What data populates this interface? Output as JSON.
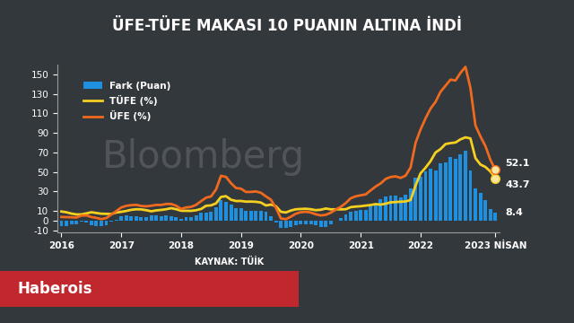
{
  "chart_data": {
    "type": "line",
    "title": "ÜFE-TÜFE MAKASI 10 PUANIN ALTINA İNDİ",
    "source": "KAYNAK: TÜİK",
    "watermark": "Bloomberg",
    "footer": "Haberois",
    "categories": [
      "2016",
      null,
      null,
      null,
      null,
      null,
      null,
      null,
      null,
      null,
      null,
      null,
      "2017",
      null,
      null,
      null,
      null,
      null,
      null,
      null,
      null,
      null,
      null,
      null,
      "2018",
      null,
      null,
      null,
      null,
      null,
      null,
      null,
      null,
      null,
      null,
      null,
      "2019",
      null,
      null,
      null,
      null,
      null,
      null,
      null,
      null,
      null,
      null,
      null,
      "2020",
      null,
      null,
      null,
      null,
      null,
      null,
      null,
      null,
      null,
      null,
      null,
      "2021",
      null,
      null,
      null,
      null,
      null,
      null,
      null,
      null,
      null,
      null,
      null,
      "2022",
      null,
      null,
      null,
      null,
      null,
      null,
      null,
      null,
      null,
      null,
      null,
      null,
      null,
      null,
      "2023 NİSAN"
    ],
    "series": [
      {
        "name": "Fark (Puan)",
        "type": "bar",
        "color": "#1f8fe0",
        "end_label": "8.4",
        "values": [
          -5.62,
          -4.96,
          -3.79,
          -3.22,
          -1.23,
          -2.09,
          -4.83,
          -5.02,
          -5.5,
          -4.32,
          -0.59,
          1.41,
          4.47,
          5.23,
          4.8,
          4.5,
          3.54,
          3.97,
          5.66,
          5.66,
          5.08,
          5.38,
          4.32,
          3.55,
          1.79,
          3.45,
          4.05,
          5.52,
          8.01,
          8.32,
          9.15,
          14.23,
          21.63,
          19.77,
          16.92,
          13.34,
          12.58,
          9.91,
          9.93,
          10.62,
          10.0,
          9.32,
          5.01,
          -1.56,
          -6.81,
          -6.85,
          -6.3,
          -4.48,
          -3.31,
          -3.11,
          -3.36,
          -4.23,
          -5.86,
          -6.45,
          -3.43,
          -0.24,
          2.58,
          6.31,
          9.08,
          10.55,
          11.19,
          11.48,
          15.01,
          18.03,
          21.74,
          25.36,
          25.97,
          26.27,
          24.38,
          26.42,
          33.31,
          43.81,
          44.84,
          50.57,
          53.83,
          51.85,
          58.66,
          59.69,
          65.01,
          63.54,
          68.05,
          72.18,
          51.63,
          33.45,
          28.78,
          21.43,
          11.94,
          8.43
        ]
      },
      {
        "name": "TÜFE (%)",
        "type": "line",
        "color": "#f5d020",
        "end_label": "43.7",
        "values": [
          9.58,
          8.78,
          7.46,
          6.57,
          6.58,
          7.64,
          8.79,
          8.05,
          7.28,
          7.16,
          7.0,
          8.53,
          9.22,
          10.13,
          11.29,
          11.87,
          11.72,
          10.9,
          9.79,
          10.68,
          11.2,
          11.9,
          12.98,
          11.92,
          10.35,
          10.26,
          10.23,
          10.85,
          12.15,
          15.39,
          15.85,
          17.9,
          24.52,
          25.24,
          21.62,
          20.3,
          20.35,
          19.67,
          19.71,
          19.5,
          18.71,
          15.72,
          16.65,
          15.01,
          9.26,
          8.55,
          10.56,
          11.84,
          12.15,
          12.37,
          11.86,
          10.94,
          11.39,
          12.62,
          11.76,
          11.77,
          11.75,
          11.89,
          14.03,
          14.6,
          14.97,
          15.61,
          16.19,
          17.14,
          16.59,
          17.53,
          18.95,
          19.25,
          19.58,
          19.89,
          21.31,
          36.08,
          48.69,
          54.44,
          61.14,
          69.97,
          73.5,
          78.62,
          79.6,
          80.21,
          83.45,
          85.51,
          84.39,
          64.27,
          57.68,
          55.18,
          50.51,
          43.68
        ]
      },
      {
        "name": "ÜFE (%)",
        "type": "line",
        "color": "#f06a1e",
        "end_label": "52.1",
        "values": [
          3.96,
          3.82,
          3.67,
          3.35,
          5.35,
          5.55,
          3.96,
          3.03,
          1.78,
          2.84,
          6.41,
          9.94,
          13.69,
          15.36,
          16.09,
          16.37,
          15.26,
          14.87,
          15.45,
          16.34,
          16.28,
          17.28,
          17.3,
          15.47,
          12.14,
          13.71,
          14.28,
          16.37,
          20.16,
          23.71,
          25.0,
          32.13,
          46.15,
          45.01,
          38.54,
          33.64,
          32.93,
          29.58,
          29.64,
          30.12,
          28.71,
          25.04,
          21.66,
          13.45,
          2.45,
          1.7,
          4.26,
          7.36,
          8.84,
          9.26,
          8.5,
          6.71,
          5.53,
          6.17,
          8.33,
          11.53,
          14.33,
          18.2,
          23.11,
          25.15,
          26.16,
          27.09,
          31.2,
          35.17,
          38.33,
          42.89,
          44.92,
          45.52,
          43.96,
          46.31,
          54.62,
          79.89,
          93.53,
          105.01,
          114.97,
          121.82,
          132.16,
          138.31,
          144.61,
          143.75,
          151.5,
          157.69,
          136.02,
          97.72,
          86.46,
          76.61,
          62.45,
          52.11
        ]
      }
    ],
    "ylim": [
      -12,
      160
    ],
    "yticks": [
      -10,
      0,
      10,
      30,
      50,
      70,
      90,
      110,
      130,
      150
    ],
    "grid": false,
    "legend": "upper left"
  }
}
